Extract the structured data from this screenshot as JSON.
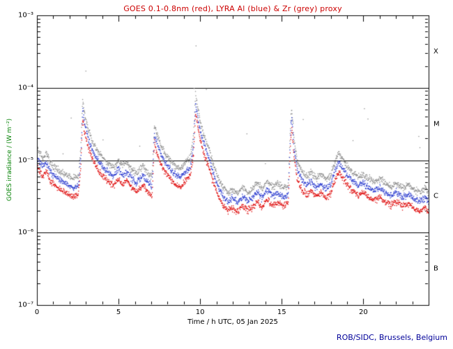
{
  "chart_data": {
    "type": "scatter",
    "title": "GOES 0.1-0.8nm (red), LYRA Al (blue) & Zr (grey) proxy",
    "xlabel": "Time / h UTC, 05 Jan 2025",
    "ylabel": "GOES irradiance / (W m⁻²)",
    "footer": "ROB/SIDC, Brussels, Belgium",
    "colors": {
      "title": "#cc0000",
      "ylabel": "#008000",
      "footer": "#000099",
      "axis": "#000000",
      "red_series": "#dd0000",
      "blue_series": "#2233cc",
      "grey_series": "#8a8a8a"
    },
    "x_range_hours": [
      0,
      24
    ],
    "y_log_range": [
      -3,
      -7
    ],
    "x_major_ticks": [
      0,
      5,
      10,
      15,
      20
    ],
    "x_minor_step_hours": 1,
    "y_ticks": [
      {
        "exp": -3,
        "label": "10⁻³"
      },
      {
        "exp": -4,
        "label": "10⁻⁴"
      },
      {
        "exp": -5,
        "label": "10⁻⁵"
      },
      {
        "exp": -6,
        "label": "10⁻⁶"
      },
      {
        "exp": -7,
        "label": "10⁻⁷"
      }
    ],
    "hlines_flux": [
      0.0001,
      1e-05,
      1e-06
    ],
    "flare_classes": [
      {
        "label": "X",
        "log_range": [
          -4,
          -3
        ]
      },
      {
        "label": "M",
        "log_range": [
          -5,
          -4
        ]
      },
      {
        "label": "C",
        "log_range": [
          -6,
          -5
        ]
      },
      {
        "label": "B",
        "log_range": [
          -7,
          -6
        ]
      }
    ],
    "series": [
      {
        "name": "GOES 0.1-0.8nm",
        "color_key": "red_series",
        "scale": 1.0
      },
      {
        "name": "LYRA Al proxy",
        "color_key": "blue_series",
        "scale": 1.35
      },
      {
        "name": "LYRA Zr proxy",
        "color_key": "grey_series",
        "scale": 1.8
      }
    ],
    "sample_step_minutes": 1,
    "noise_sigma_decades": 0.022,
    "red_flux_control_points_hour_wm2": [
      [
        0.0,
        8.5e-06
      ],
      [
        0.35,
        6e-06
      ],
      [
        0.6,
        7e-06
      ],
      [
        0.8,
        5.2e-06
      ],
      [
        1.2,
        4.2e-06
      ],
      [
        1.7,
        3.6e-06
      ],
      [
        2.2,
        3.1e-06
      ],
      [
        2.55,
        3.4e-06
      ],
      [
        2.7,
        9e-06
      ],
      [
        2.8,
        3.8e-05
      ],
      [
        2.9,
        2.6e-05
      ],
      [
        3.1,
        1.6e-05
      ],
      [
        3.4,
        1e-05
      ],
      [
        3.8,
        7e-06
      ],
      [
        4.3,
        5.2e-06
      ],
      [
        4.7,
        4.4e-06
      ],
      [
        5.0,
        5.6e-06
      ],
      [
        5.25,
        4.6e-06
      ],
      [
        5.5,
        5.2e-06
      ],
      [
        5.8,
        4.2e-06
      ],
      [
        6.1,
        3.6e-06
      ],
      [
        6.5,
        4.6e-06
      ],
      [
        6.8,
        3.6e-06
      ],
      [
        7.05,
        3.2e-06
      ],
      [
        7.2,
        1.7e-05
      ],
      [
        7.3,
        1.4e-05
      ],
      [
        7.5,
        1e-05
      ],
      [
        7.8,
        7.2e-06
      ],
      [
        8.1,
        5.8e-06
      ],
      [
        8.5,
        4.6e-06
      ],
      [
        8.8,
        4.2e-06
      ],
      [
        9.1,
        5.2e-06
      ],
      [
        9.4,
        6e-06
      ],
      [
        9.6,
        1.2e-05
      ],
      [
        9.72,
        4.6e-05
      ],
      [
        9.85,
        3e-05
      ],
      [
        10.0,
        1.9e-05
      ],
      [
        10.2,
        1.3e-05
      ],
      [
        10.5,
        8.5e-06
      ],
      [
        10.8,
        5e-06
      ],
      [
        11.1,
        3.2e-06
      ],
      [
        11.4,
        2.4e-06
      ],
      [
        11.7,
        2e-06
      ],
      [
        12.0,
        2.2e-06
      ],
      [
        12.3,
        1.9e-06
      ],
      [
        12.6,
        2.4e-06
      ],
      [
        12.9,
        2e-06
      ],
      [
        13.2,
        2.2e-06
      ],
      [
        13.5,
        2.7e-06
      ],
      [
        13.8,
        2.2e-06
      ],
      [
        14.1,
        2.9e-06
      ],
      [
        14.4,
        2.4e-06
      ],
      [
        14.8,
        2.6e-06
      ],
      [
        15.1,
        2.3e-06
      ],
      [
        15.4,
        2.5e-06
      ],
      [
        15.55,
        2e-05
      ],
      [
        15.62,
        2.9e-05
      ],
      [
        15.75,
        1.1e-05
      ],
      [
        15.95,
        5.5e-06
      ],
      [
        16.2,
        4e-06
      ],
      [
        16.5,
        3.3e-06
      ],
      [
        16.8,
        3.8e-06
      ],
      [
        17.1,
        3.1e-06
      ],
      [
        17.4,
        3.5e-06
      ],
      [
        17.7,
        3e-06
      ],
      [
        18.0,
        3.4e-06
      ],
      [
        18.3,
        5.5e-06
      ],
      [
        18.5,
        7e-06
      ],
      [
        18.75,
        5.6e-06
      ],
      [
        19.0,
        4.6e-06
      ],
      [
        19.3,
        3.9e-06
      ],
      [
        19.7,
        3.3e-06
      ],
      [
        20.0,
        3.6e-06
      ],
      [
        20.3,
        3.1e-06
      ],
      [
        20.7,
        2.8e-06
      ],
      [
        21.0,
        3.1e-06
      ],
      [
        21.3,
        2.7e-06
      ],
      [
        21.7,
        2.4e-06
      ],
      [
        22.0,
        2.7e-06
      ],
      [
        22.4,
        2.3e-06
      ],
      [
        22.8,
        2.5e-06
      ],
      [
        23.1,
        2.1e-06
      ],
      [
        23.5,
        2e-06
      ],
      [
        23.8,
        2.3e-06
      ],
      [
        24.0,
        1.9e-06
      ]
    ]
  }
}
